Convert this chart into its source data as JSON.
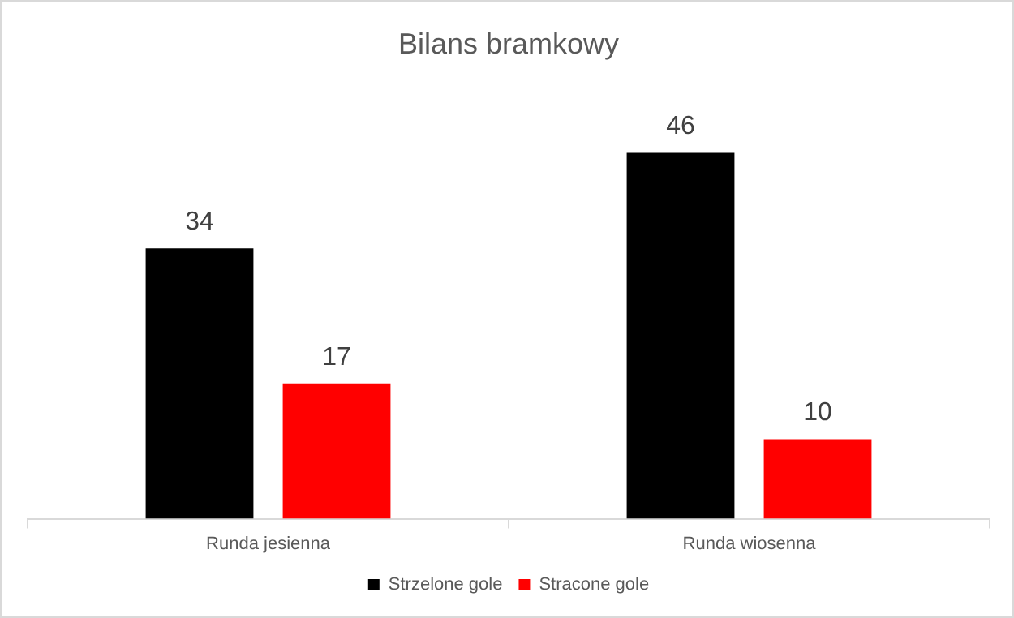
{
  "chart_data": {
    "type": "bar",
    "title": "Bilans bramkowy",
    "categories": [
      "Runda jesienna",
      "Runda wiosenna"
    ],
    "series": [
      {
        "name": "Strzelone gole",
        "color": "#000000",
        "values": [
          34,
          46
        ]
      },
      {
        "name": "Stracone gole",
        "color": "#ff0000",
        "values": [
          17,
          10
        ]
      }
    ],
    "data_labels": true,
    "legend": "bottom",
    "grid": false
  }
}
